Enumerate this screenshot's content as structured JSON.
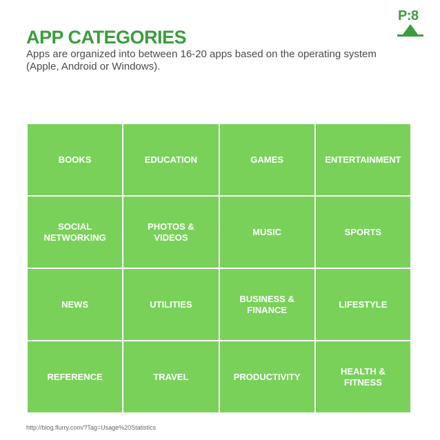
{
  "page_label": "P:8",
  "title": "APP CATEGORIES",
  "subtitle": "Apps are organized into between 16-20 apps based on the operating system (Apple, Android or Windows).",
  "categories": [
    "BOOKS",
    "EDUCATION",
    "GAMES",
    "ENTERTAINMENT",
    "SOCIAL\nNETWORKING",
    "PHOTOS &\nVIDEOS",
    "MUSIC",
    "SPORTS",
    "NEWS",
    "UTILITIES",
    "BUSINESS &\nFINANCE",
    "LIFESTYLE",
    "REFERENCE",
    "TRAVEL",
    "PRODUCTIVITY",
    "HEALTH &\nFITNESS"
  ],
  "source": "http://blog.flurry.com/?Tag=Usage%20Statistics",
  "colors": {
    "accent": "#3a9e3c",
    "tile": "#79d15a"
  }
}
